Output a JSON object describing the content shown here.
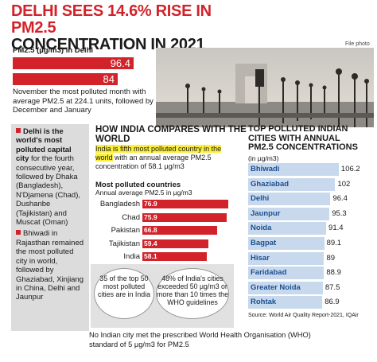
{
  "headline": {
    "line1": "DELHI SEES 14.6% RISE IN PM2.5",
    "line2": "CONCENTRATION IN 2021"
  },
  "photo_credit": "File photo",
  "delhi_pm": {
    "label": "PM2.5 (µg/m3) in Delhi",
    "values": [
      "96.4",
      "84"
    ],
    "note": "November the most polluted month with average PM2.5 at 224.1 units, followed by December and January"
  },
  "left_bullets": [
    {
      "bold": "Delhi is the world's most polluted capital city",
      "rest": " for the fourth consecutive year, followed by Dhaka (Bangladesh), N'Djamena (Chad), Dushanbe (Tajikistan) and Muscat (Oman)"
    },
    {
      "bold": "",
      "rest": "Bhiwadi in Rajasthan remained the most polluted city in world, followed by Ghaziabad, Xinjiang in China, Delhi and Jaunpur"
    }
  ],
  "compare": {
    "heading": "HOW INDIA COMPARES WITH THE WORLD",
    "highlight": "India is fifth most polluted country in the world",
    "rest": " with an annual average PM2.5 concentration of 58.1 µg/m3"
  },
  "countries": {
    "title": "Most polluted countries",
    "subtitle": "Annual average PM2.5 in µg/m3",
    "items": [
      {
        "name": "Bangladesh",
        "value": "76.9"
      },
      {
        "name": "Chad",
        "value": "75.9"
      },
      {
        "name": "Pakistan",
        "value": "66.8"
      },
      {
        "name": "Tajikistan",
        "value": "59.4"
      },
      {
        "name": "India",
        "value": "58.1"
      }
    ]
  },
  "bubbles": [
    "35 of the top 50 most polluted cities are in India",
    "48% of India's cities exceeded 50 µg/m3 or more than 10 times the WHO guidelines"
  ],
  "cities": {
    "heading": "TOP POLLUTED INDIAN CITIES WITH ANNUAL PM2.5 CONCENTRATIONS",
    "subtitle": "(in µg/m3)",
    "items": [
      {
        "name": "Bhiwadi",
        "value": "106.2"
      },
      {
        "name": "Ghaziabad",
        "value": "102"
      },
      {
        "name": "Delhi",
        "value": "96.4"
      },
      {
        "name": "Jaunpur",
        "value": "95.3"
      },
      {
        "name": "Noida",
        "value": "91.4"
      },
      {
        "name": "Bagpat",
        "value": "89.1"
      },
      {
        "name": "Hisar",
        "value": "89"
      },
      {
        "name": "Faridabad",
        "value": "88.9"
      },
      {
        "name": "Greater Noida",
        "value": "87.5"
      },
      {
        "name": "Rohtak",
        "value": "86.9"
      }
    ],
    "source": "Source: World Air Quality Report-2021, IQAir"
  },
  "footer": "No Indian city met the prescribed World Health Organisation (WHO) standard of 5 µg/m3 for PM2.5"
}
